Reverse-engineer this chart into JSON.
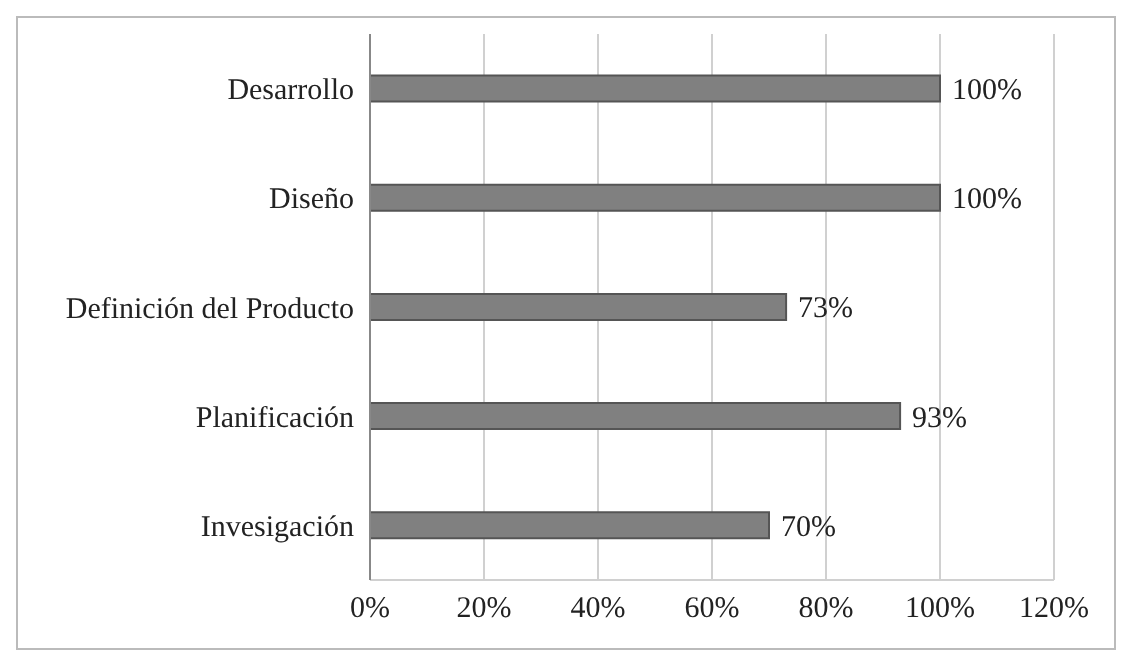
{
  "chart_data": {
    "type": "bar",
    "orientation": "horizontal",
    "categories": [
      "Desarrollo",
      "Diseño",
      "Definición del Producto",
      "Planificación",
      "Invesigación"
    ],
    "values": [
      100,
      100,
      73,
      93,
      70
    ],
    "value_labels": [
      "100%",
      "100%",
      "73%",
      "93%",
      "70%"
    ],
    "color": "#808080",
    "xlim": [
      0,
      120
    ],
    "xticks": [
      {
        "value": 0,
        "label": "0%"
      },
      {
        "value": 20,
        "label": "20%"
      },
      {
        "value": 40,
        "label": "40%"
      },
      {
        "value": 60,
        "label": "60%"
      },
      {
        "value": 80,
        "label": "80%"
      },
      {
        "value": 100,
        "label": "100%"
      },
      {
        "value": 120,
        "label": "120%"
      }
    ],
    "grid": "x",
    "legend": false
  }
}
